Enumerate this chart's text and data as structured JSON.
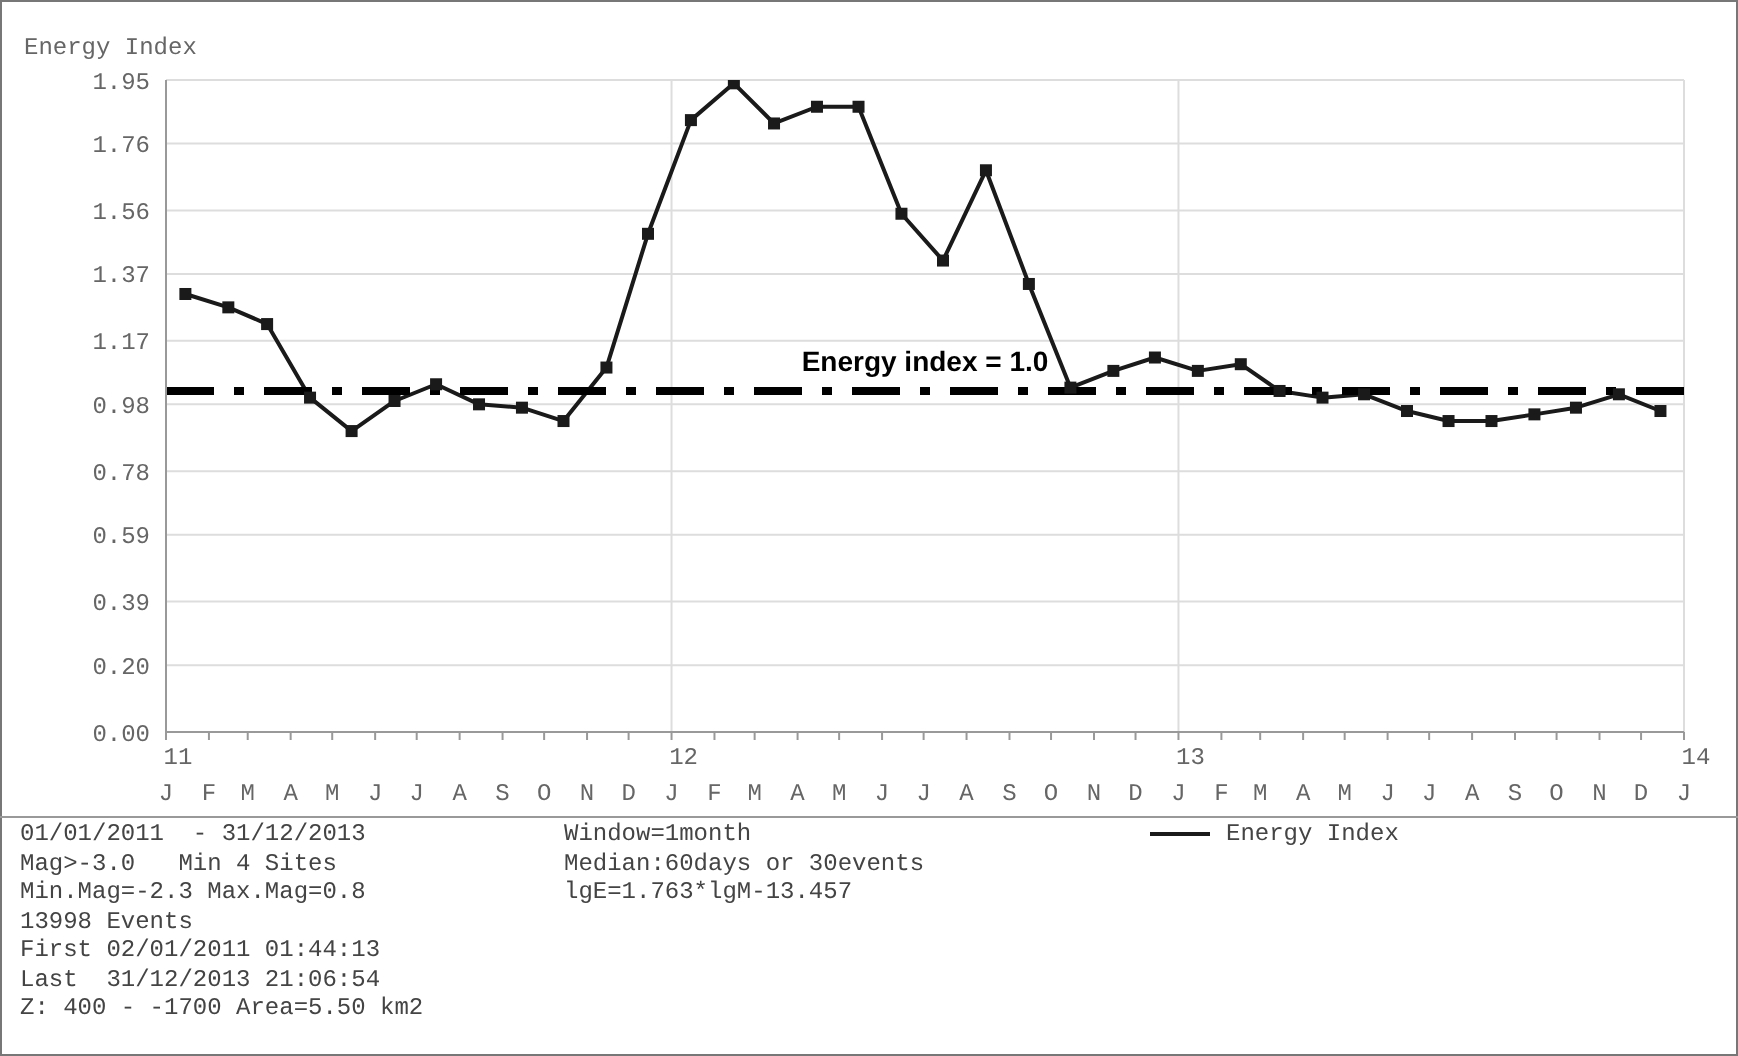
{
  "chart_data": {
    "type": "line",
    "ylabel": "Energy Index",
    "x": [
      "2011-01-15",
      "2011-02-15",
      "2011-03-15",
      "2011-04-15",
      "2011-05-15",
      "2011-06-15",
      "2011-07-15",
      "2011-08-15",
      "2011-09-15",
      "2011-10-15",
      "2011-11-15",
      "2011-12-15",
      "2012-01-15",
      "2012-02-15",
      "2012-03-15",
      "2012-04-15",
      "2012-05-15",
      "2012-06-15",
      "2012-07-15",
      "2012-08-15",
      "2012-09-15",
      "2012-10-15",
      "2012-11-15",
      "2012-12-15",
      "2013-01-15",
      "2013-02-15",
      "2013-03-15",
      "2013-04-15",
      "2013-05-15",
      "2013-06-15",
      "2013-07-15",
      "2013-08-15",
      "2013-09-15",
      "2013-10-15",
      "2013-11-15",
      "2013-12-15"
    ],
    "series": [
      {
        "name": "Energy Index",
        "color": "#1a1a1a",
        "values": [
          1.31,
          1.27,
          1.22,
          1.0,
          0.9,
          0.99,
          1.04,
          0.98,
          0.97,
          0.93,
          1.09,
          1.49,
          1.83,
          1.94,
          1.82,
          1.87,
          1.87,
          1.55,
          1.41,
          1.68,
          1.34,
          1.03,
          1.08,
          1.12,
          1.08,
          1.1,
          1.02,
          1.0,
          1.01,
          0.96,
          0.93,
          0.93,
          0.95,
          0.97,
          1.01,
          0.96
        ]
      }
    ],
    "xlim": [
      "2011-01",
      "2014-01"
    ],
    "xticks": [
      {
        "value": "2011-01",
        "label": "11\nJ"
      },
      {
        "value": "2011-02",
        "label": "F"
      },
      {
        "value": "2011-03",
        "label": "M"
      },
      {
        "value": "2011-04",
        "label": "A"
      },
      {
        "value": "2011-05",
        "label": "M"
      },
      {
        "value": "2011-06",
        "label": "J"
      },
      {
        "value": "2011-07",
        "label": "J"
      },
      {
        "value": "2011-08",
        "label": "A"
      },
      {
        "value": "2011-09",
        "label": "S"
      },
      {
        "value": "2011-10",
        "label": "O"
      },
      {
        "value": "2011-11",
        "label": "N"
      },
      {
        "value": "2011-12",
        "label": "D"
      },
      {
        "value": "2012-01",
        "label": "12\nJ"
      },
      {
        "value": "2012-02",
        "label": "F"
      },
      {
        "value": "2012-03",
        "label": "M"
      },
      {
        "value": "2012-04",
        "label": "A"
      },
      {
        "value": "2012-05",
        "label": "M"
      },
      {
        "value": "2012-06",
        "label": "J"
      },
      {
        "value": "2012-07",
        "label": "J"
      },
      {
        "value": "2012-08",
        "label": "A"
      },
      {
        "value": "2012-09",
        "label": "S"
      },
      {
        "value": "2012-10",
        "label": "O"
      },
      {
        "value": "2012-11",
        "label": "N"
      },
      {
        "value": "2012-12",
        "label": "D"
      },
      {
        "value": "2013-01",
        "label": "13\nJ"
      },
      {
        "value": "2013-02",
        "label": "F"
      },
      {
        "value": "2013-03",
        "label": "M"
      },
      {
        "value": "2013-04",
        "label": "A"
      },
      {
        "value": "2013-05",
        "label": "M"
      },
      {
        "value": "2013-06",
        "label": "J"
      },
      {
        "value": "2013-07",
        "label": "J"
      },
      {
        "value": "2013-08",
        "label": "A"
      },
      {
        "value": "2013-09",
        "label": "S"
      },
      {
        "value": "2013-10",
        "label": "O"
      },
      {
        "value": "2013-11",
        "label": "N"
      },
      {
        "value": "2013-12",
        "label": "D"
      },
      {
        "value": "2014-01",
        "label": "14\nJ"
      }
    ],
    "ylim": [
      0,
      1.95
    ],
    "yticks": [
      {
        "value": 0,
        "label": "0.00"
      },
      {
        "value": 0.2,
        "label": "0.20"
      },
      0.39,
      0.59,
      0.78,
      0.98,
      1.17,
      1.37,
      1.56,
      1.76,
      1.95
    ],
    "grid": true,
    "legend": "bottom",
    "marker": "square",
    "line_style": "solid",
    "ref_lines": [
      {
        "axis": "y",
        "value": 1.02,
        "label": "Energy index = 1.0",
        "color": "#000000",
        "line_style": "dashed"
      }
    ],
    "annotations": [
      "01/01/2011  - 31/12/2013",
      "Mag>-3.0   Min 4 Sites",
      "Min.Mag=-2.3 Max.Mag=0.8",
      "13998 Events",
      "First 02/01/2011 01:44:13",
      "Last  31/12/2013 21:06:54",
      "Z: 400 - -1700 Area=5.50 km2",
      "Window=1month",
      "Median:60days or 30events",
      "lgE=1.763*lgM-13.457"
    ]
  }
}
